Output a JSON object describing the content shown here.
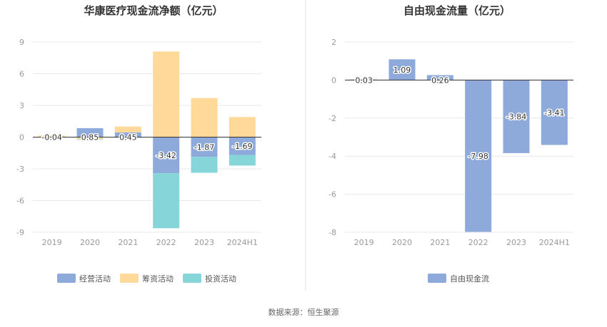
{
  "source_label": "数据来源：恒生聚源",
  "colors": {
    "operating": "#8eaadb",
    "financing": "#ffd99a",
    "investing": "#86d5d9",
    "free_cash_flow": "#8eaadb",
    "grid": "#e8e8e8",
    "axis": "#333333",
    "divider": "#e5e5e5"
  },
  "chart_data": [
    {
      "type": "bar",
      "stacked": true,
      "title": "华康医疗现金流净额（亿元）",
      "categories": [
        "2019",
        "2020",
        "2021",
        "2022",
        "2023",
        "2024H1"
      ],
      "y_ticks": [
        "9",
        "6",
        "3",
        "0",
        "-3",
        "-6",
        "-9"
      ],
      "ylim": [
        -9,
        9
      ],
      "grid": true,
      "legend_position": "bottom",
      "series": [
        {
          "name": "经营活动",
          "color_key": "operating",
          "values": [
            -0.04,
            0.85,
            0.45,
            -3.42,
            -1.87,
            -1.69
          ]
        },
        {
          "name": "筹资活动",
          "color_key": "financing",
          "values": [
            0.15,
            -0.2,
            0.55,
            8.1,
            3.7,
            1.9
          ]
        },
        {
          "name": "投资活动",
          "color_key": "investing",
          "values": [
            0.0,
            -0.05,
            -0.05,
            -5.2,
            -1.5,
            -1.0
          ]
        }
      ],
      "data_labels": [
        "-0.04",
        "0.85",
        "0.45",
        "-3.42",
        "-1.87",
        "-1.69"
      ]
    },
    {
      "type": "bar",
      "title": "自由现金流量（亿元）",
      "categories": [
        "2019",
        "2020",
        "2021",
        "2022",
        "2023",
        "2024H1"
      ],
      "y_ticks": [
        "2",
        "0",
        "-2",
        "-4",
        "-6",
        "-8"
      ],
      "ylim": [
        -8,
        2
      ],
      "grid": true,
      "legend_position": "bottom",
      "series": [
        {
          "name": "自由现金流",
          "color_key": "free_cash_flow",
          "values": [
            0.03,
            1.09,
            0.26,
            -7.98,
            -3.84,
            -3.41
          ]
        }
      ],
      "data_labels": [
        "0.03",
        "1.09",
        "0.26",
        "-7.98",
        "-3.84",
        "-3.41"
      ]
    }
  ]
}
